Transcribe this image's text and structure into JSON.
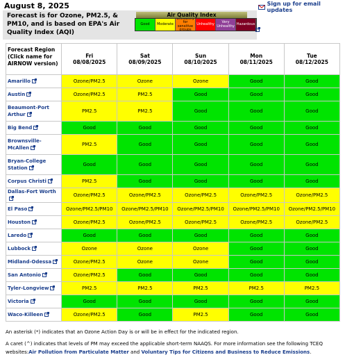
{
  "header": {
    "date": "August 8, 2025",
    "intro": "Forecast is for Ozone, PM2.5, & PM10, and is based on EPA's Air Quality Index (AQI)",
    "signup": "Sign up for email updates"
  },
  "aqi_legend": {
    "title": "Air Quality Index",
    "levels": [
      {
        "label": "Good",
        "color": "#00e400"
      },
      {
        "label": "Moderate",
        "color": "#ffff00"
      },
      {
        "label": "Unhealthy for sensitive groups",
        "color": "#ff7e00"
      },
      {
        "label": "Unhealthy",
        "color": "#ff0000"
      },
      {
        "label": "Very Unhealthy",
        "color": "#8f3f97"
      },
      {
        "label": "Hazardous",
        "color": "#7e0023"
      }
    ]
  },
  "table": {
    "region_header": "Forecast Region (Click name for AIRNOW version)",
    "days": [
      {
        "day": "Fri",
        "date": "08/08/2025"
      },
      {
        "day": "Sat",
        "date": "08/09/2025"
      },
      {
        "day": "Sun",
        "date": "08/10/2025"
      },
      {
        "day": "Mon",
        "date": "08/11/2025"
      },
      {
        "day": "Tue",
        "date": "08/12/2025"
      }
    ],
    "rows": [
      {
        "region": "Amarillo",
        "cells": [
          {
            "text": "Ozone/PM2.5",
            "color": "#ffff00"
          },
          {
            "text": "Ozone",
            "color": "#ffff00"
          },
          {
            "text": "Ozone",
            "color": "#ffff00"
          },
          {
            "text": "Good",
            "color": "#00e400"
          },
          {
            "text": "Good",
            "color": "#00e400"
          }
        ]
      },
      {
        "region": "Austin",
        "cells": [
          {
            "text": "Ozone/PM2.5",
            "color": "#ffff00"
          },
          {
            "text": "PM2.5",
            "color": "#ffff00"
          },
          {
            "text": "Good",
            "color": "#00e400"
          },
          {
            "text": "Good",
            "color": "#00e400"
          },
          {
            "text": "Good",
            "color": "#00e400"
          }
        ]
      },
      {
        "region": "Beaumont-Port Arthur",
        "cells": [
          {
            "text": "PM2.5",
            "color": "#ffff00"
          },
          {
            "text": "PM2.5",
            "color": "#ffff00"
          },
          {
            "text": "Good",
            "color": "#00e400"
          },
          {
            "text": "Good",
            "color": "#00e400"
          },
          {
            "text": "Good",
            "color": "#00e400"
          }
        ]
      },
      {
        "region": "Big Bend",
        "cells": [
          {
            "text": "Good",
            "color": "#00e400"
          },
          {
            "text": "Good",
            "color": "#00e400"
          },
          {
            "text": "Good",
            "color": "#00e400"
          },
          {
            "text": "Good",
            "color": "#00e400"
          },
          {
            "text": "Good",
            "color": "#00e400"
          }
        ]
      },
      {
        "region": "Brownsville-McAllen",
        "cells": [
          {
            "text": "PM2.5",
            "color": "#ffff00"
          },
          {
            "text": "Good",
            "color": "#00e400"
          },
          {
            "text": "Good",
            "color": "#00e400"
          },
          {
            "text": "Good",
            "color": "#00e400"
          },
          {
            "text": "Good",
            "color": "#00e400"
          }
        ]
      },
      {
        "region": "Bryan-College Station",
        "cells": [
          {
            "text": "Good",
            "color": "#00e400"
          },
          {
            "text": "Good",
            "color": "#00e400"
          },
          {
            "text": "Good",
            "color": "#00e400"
          },
          {
            "text": "Good",
            "color": "#00e400"
          },
          {
            "text": "Good",
            "color": "#00e400"
          }
        ]
      },
      {
        "region": "Corpus Christi",
        "cells": [
          {
            "text": "PM2.5",
            "color": "#ffff00"
          },
          {
            "text": "Good",
            "color": "#00e400"
          },
          {
            "text": "Good",
            "color": "#00e400"
          },
          {
            "text": "Good",
            "color": "#00e400"
          },
          {
            "text": "Good",
            "color": "#00e400"
          }
        ]
      },
      {
        "region": "Dallas-Fort Worth",
        "cells": [
          {
            "text": "Ozone/PM2.5",
            "color": "#ffff00"
          },
          {
            "text": "Ozone/PM2.5",
            "color": "#ffff00"
          },
          {
            "text": "Ozone/PM2.5",
            "color": "#ffff00"
          },
          {
            "text": "Ozone/PM2.5",
            "color": "#ffff00"
          },
          {
            "text": "Ozone/PM2.5",
            "color": "#ffff00"
          }
        ]
      },
      {
        "region": "El Paso",
        "cells": [
          {
            "text": "Ozone/PM2.5/PM10",
            "color": "#ffff00"
          },
          {
            "text": "Ozone/PM2.5/PM10",
            "color": "#ffff00"
          },
          {
            "text": "Ozone/PM2.5/PM10",
            "color": "#ffff00"
          },
          {
            "text": "Ozone/PM2.5/PM10",
            "color": "#ffff00"
          },
          {
            "text": "Ozone/PM2.5/PM10",
            "color": "#ffff00"
          }
        ]
      },
      {
        "region": "Houston",
        "cells": [
          {
            "text": "Ozone/PM2.5",
            "color": "#ffff00"
          },
          {
            "text": "Ozone/PM2.5",
            "color": "#ffff00"
          },
          {
            "text": "Ozone/PM2.5",
            "color": "#ffff00"
          },
          {
            "text": "Ozone/PM2.5",
            "color": "#ffff00"
          },
          {
            "text": "Ozone/PM2.5",
            "color": "#ffff00"
          }
        ]
      },
      {
        "region": "Laredo",
        "cells": [
          {
            "text": "Good",
            "color": "#00e400"
          },
          {
            "text": "Good",
            "color": "#00e400"
          },
          {
            "text": "Good",
            "color": "#00e400"
          },
          {
            "text": "Good",
            "color": "#00e400"
          },
          {
            "text": "Good",
            "color": "#00e400"
          }
        ]
      },
      {
        "region": "Lubbock",
        "cells": [
          {
            "text": "Ozone",
            "color": "#ffff00"
          },
          {
            "text": "Ozone",
            "color": "#ffff00"
          },
          {
            "text": "Ozone",
            "color": "#ffff00"
          },
          {
            "text": "Good",
            "color": "#00e400"
          },
          {
            "text": "Good",
            "color": "#00e400"
          }
        ]
      },
      {
        "region": "Midland-Odessa",
        "cells": [
          {
            "text": "Ozone/PM2.5",
            "color": "#ffff00"
          },
          {
            "text": "Ozone",
            "color": "#ffff00"
          },
          {
            "text": "Ozone",
            "color": "#ffff00"
          },
          {
            "text": "Good",
            "color": "#00e400"
          },
          {
            "text": "Good",
            "color": "#00e400"
          }
        ]
      },
      {
        "region": "San Antonio",
        "cells": [
          {
            "text": "Ozone/PM2.5",
            "color": "#ffff00"
          },
          {
            "text": "Good",
            "color": "#00e400"
          },
          {
            "text": "Good",
            "color": "#00e400"
          },
          {
            "text": "Good",
            "color": "#00e400"
          },
          {
            "text": "Good",
            "color": "#00e400"
          }
        ]
      },
      {
        "region": "Tyler-Longview",
        "cells": [
          {
            "text": "PM2.5",
            "color": "#ffff00"
          },
          {
            "text": "PM2.5",
            "color": "#ffff00"
          },
          {
            "text": "PM2.5",
            "color": "#ffff00"
          },
          {
            "text": "PM2.5",
            "color": "#ffff00"
          },
          {
            "text": "PM2.5",
            "color": "#ffff00"
          }
        ]
      },
      {
        "region": "Victoria",
        "cells": [
          {
            "text": "Good",
            "color": "#00e400"
          },
          {
            "text": "Good",
            "color": "#00e400"
          },
          {
            "text": "Good",
            "color": "#00e400"
          },
          {
            "text": "Good",
            "color": "#00e400"
          },
          {
            "text": "Good",
            "color": "#00e400"
          }
        ]
      },
      {
        "region": "Waco-Killeen",
        "cells": [
          {
            "text": "Ozone/PM2.5",
            "color": "#ffff00"
          },
          {
            "text": "Good",
            "color": "#00e400"
          },
          {
            "text": "PM2.5",
            "color": "#ffff00"
          },
          {
            "text": "Good",
            "color": "#00e400"
          },
          {
            "text": "Good",
            "color": "#00e400"
          }
        ]
      }
    ]
  },
  "notes": {
    "asterisk": "An asterisk (*) indicates that an Ozone Action Day is or will be in effect for the indicated region.",
    "caret": "A caret (^) indicates that levels of PM may exceed the applicable short-term NAAQS. For more information see the following TCEQ websites:",
    "link1": "Air Pollution from Particulate Matter",
    "and": "and",
    "link2": "Voluntary Tips for Citizens and Business to Reduce Emissions",
    "end": "."
  }
}
